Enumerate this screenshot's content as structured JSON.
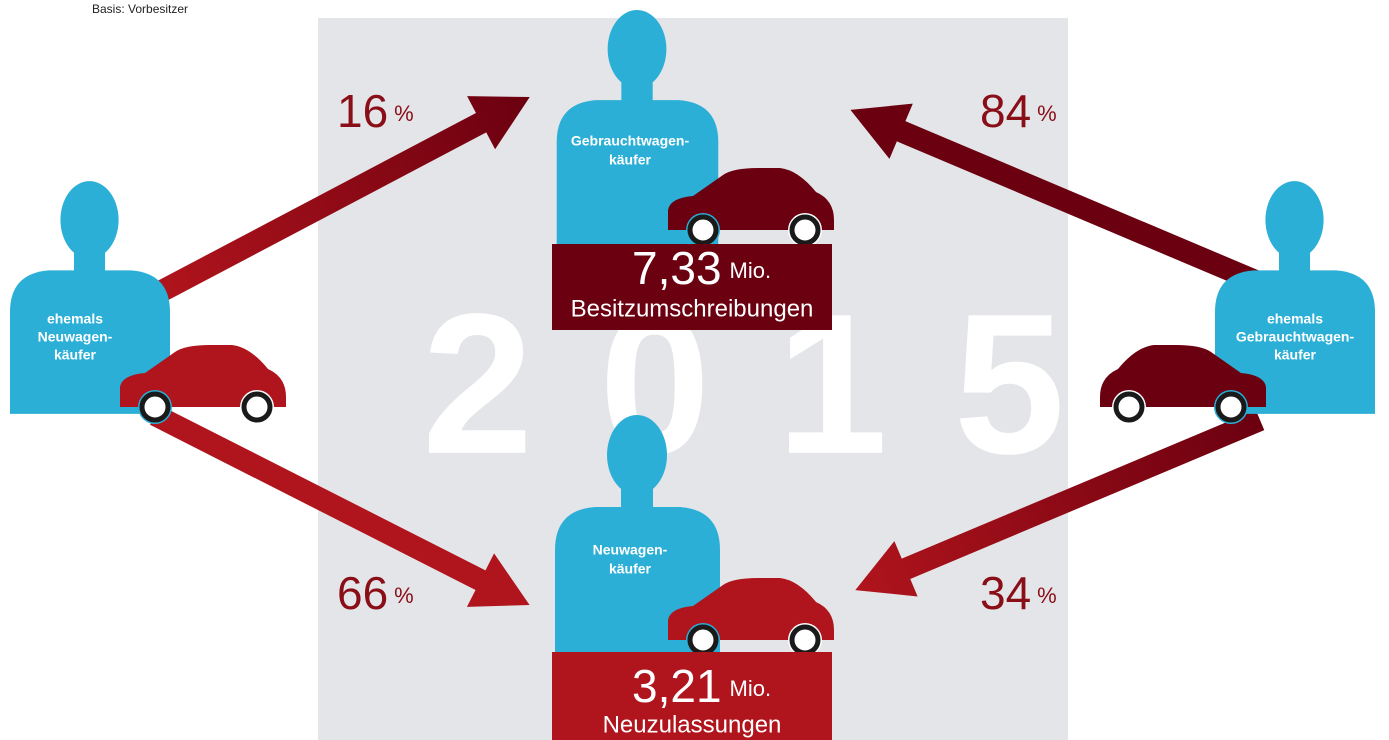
{
  "note": "Basis: Vorbesitzer",
  "year": "2015",
  "persons": [
    {
      "lines": [
        "ehemals",
        "Neuwagen-",
        "käufer"
      ]
    },
    {
      "lines": [
        "Gebrauchtwagen-",
        "käufer"
      ]
    },
    {
      "lines": [
        "Neuwagen-",
        "käufer"
      ]
    },
    {
      "lines": [
        "ehemals",
        "Gebrauchtwagen-",
        "käufer"
      ]
    }
  ],
  "totals": [
    {
      "value": "7,33",
      "unit": "Mio.",
      "label": "Besitzumschreibungen"
    },
    {
      "value": "3,21",
      "unit": "Mio.",
      "label": "Neuzulassungen"
    }
  ],
  "flows": [
    {
      "value": 16,
      "unit": "%"
    },
    {
      "value": 84,
      "unit": "%"
    },
    {
      "value": 66,
      "unit": "%"
    },
    {
      "value": 34,
      "unit": "%"
    }
  ]
}
